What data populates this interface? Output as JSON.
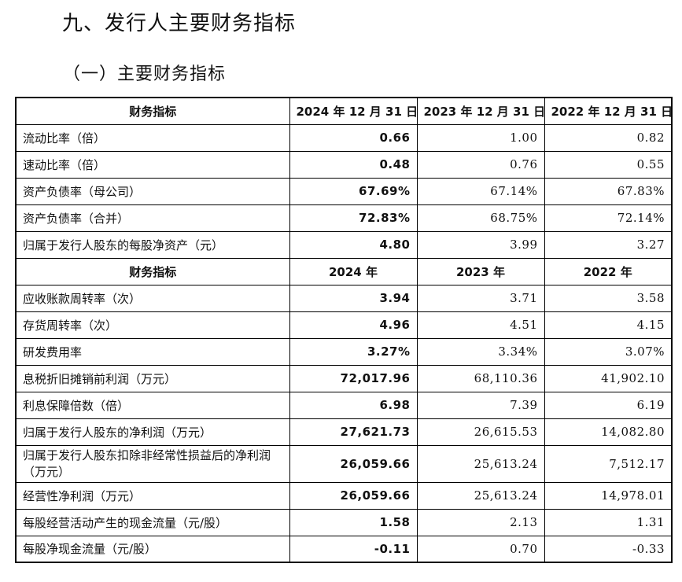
{
  "heading": "九、发行人主要财务指标",
  "subheading": "（一）主要财务指标",
  "table": {
    "header1": [
      "财务指标",
      "2024 年 12 月 31 日",
      "2023 年 12 月 31 日",
      "2022 年 12 月 31 日"
    ],
    "section1_rows": [
      {
        "label": "流动比率（倍）",
        "v2024": "0.66",
        "v2023": "1.00",
        "v2022": "0.82"
      },
      {
        "label": "速动比率（倍）",
        "v2024": "0.48",
        "v2023": "0.76",
        "v2022": "0.55"
      },
      {
        "label": "资产负债率（母公司）",
        "v2024": "67.69%",
        "v2023": "67.14%",
        "v2022": "67.83%"
      },
      {
        "label": "资产负债率（合并）",
        "v2024": "72.83%",
        "v2023": "68.75%",
        "v2022": "72.14%"
      },
      {
        "label": "归属于发行人股东的每股净资产（元）",
        "v2024": "4.80",
        "v2023": "3.99",
        "v2022": "3.27"
      }
    ],
    "header2": [
      "财务指标",
      "2024 年",
      "2023 年",
      "2022 年"
    ],
    "section2_rows": [
      {
        "label": "应收账款周转率（次）",
        "v2024": "3.94",
        "v2023": "3.71",
        "v2022": "3.58"
      },
      {
        "label": "存货周转率（次）",
        "v2024": "4.96",
        "v2023": "4.51",
        "v2022": "4.15"
      },
      {
        "label": "研发费用率",
        "v2024": "3.27%",
        "v2023": "3.34%",
        "v2022": "3.07%"
      },
      {
        "label": "息税折旧摊销前利润（万元）",
        "v2024": "72,017.96",
        "v2023": "68,110.36",
        "v2022": "41,902.10"
      },
      {
        "label": "利息保障倍数（倍）",
        "v2024": "6.98",
        "v2023": "7.39",
        "v2022": "6.19"
      },
      {
        "label": "归属于发行人股东的净利润（万元）",
        "v2024": "27,621.73",
        "v2023": "26,615.53",
        "v2022": "14,082.80"
      },
      {
        "label": "归属于发行人股东扣除非经常性损益后的净利润（万元）",
        "v2024": "26,059.66",
        "v2023": "25,613.24",
        "v2022": "7,512.17"
      },
      {
        "label": "经营性净利润（万元）",
        "v2024": "26,059.66",
        "v2023": "25,613.24",
        "v2022": "14,978.01"
      },
      {
        "label": "每股经营活动产生的现金流量（元/股）",
        "v2024": "1.58",
        "v2023": "2.13",
        "v2022": "1.31"
      },
      {
        "label": "每股净现金流量（元/股）",
        "v2024": "-0.11",
        "v2023": "0.70",
        "v2022": "-0.33"
      }
    ]
  }
}
